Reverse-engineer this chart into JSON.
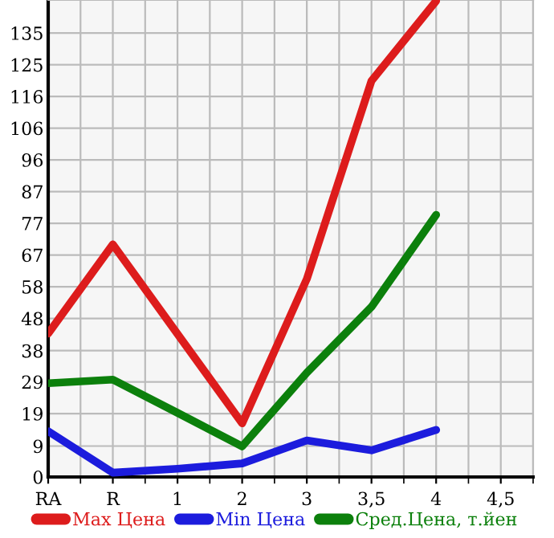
{
  "chart_data": {
    "type": "line",
    "categories": [
      "RA",
      "R",
      "1",
      "2",
      "3",
      "3,5",
      "4",
      "4,5"
    ],
    "series": [
      {
        "name": "Max Цена",
        "color": "#dd1c1c",
        "values": [
          43.6,
          70.7,
          43.5,
          16.3,
          60.2,
          120.4,
          144.7,
          null
        ]
      },
      {
        "name": "Min Цена",
        "color": "#1c1cdd",
        "values": [
          13.9,
          1.3,
          2.5,
          4.1,
          11.1,
          8.1,
          14.3,
          null
        ]
      },
      {
        "name": "Сред.Цена, т.йен",
        "color": "#0c800c",
        "values": [
          28.5,
          29.6,
          19.5,
          9.3,
          31.7,
          51.7,
          79.7,
          null
        ]
      }
    ],
    "ylim": [
      0,
      145
    ],
    "yticks": [
      0,
      {
        "value": 9.4,
        "label": "9"
      },
      {
        "value": 19.28,
        "label": "19"
      },
      {
        "value": 28.92,
        "label": "29"
      },
      {
        "value": 38.4,
        "label": "38"
      },
      {
        "value": 48.2,
        "label": "48"
      },
      {
        "value": 57.84,
        "label": "58"
      },
      {
        "value": 67.48,
        "label": "67"
      },
      {
        "value": 77.12,
        "label": "77"
      },
      {
        "value": 86.76,
        "label": "87"
      },
      {
        "value": 96.4,
        "label": "96"
      },
      {
        "value": 106.04,
        "label": "106"
      },
      {
        "value": 115.68,
        "label": "116"
      },
      {
        "value": 125.32,
        "label": "125"
      },
      {
        "value": 134.96,
        "label": "135"
      }
    ],
    "grid": true,
    "legend": "bottom",
    "marker": "none",
    "line_style": "solid"
  }
}
